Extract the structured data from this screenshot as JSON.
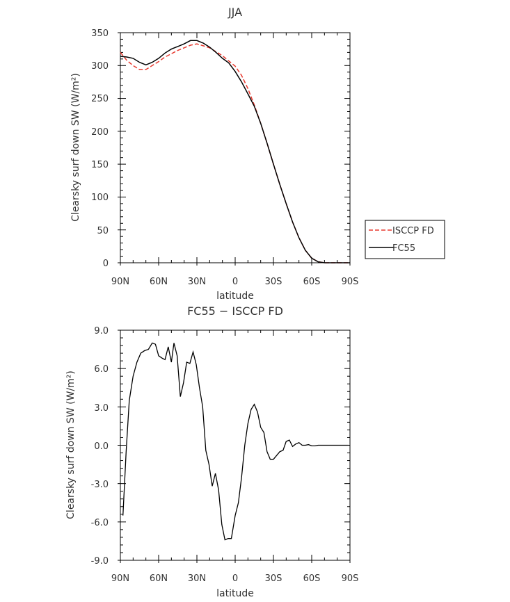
{
  "chart_data": [
    {
      "type": "line",
      "title": "JJA",
      "xlabel": "latitude",
      "ylabel": "Clearsky surf down SW (W/m²)",
      "xlim": [
        -90,
        90
      ],
      "ylim": [
        0,
        350
      ],
      "x_ticks": [
        "90N",
        "60N",
        "30N",
        "0",
        "30S",
        "60S",
        "90S"
      ],
      "y_ticks": [
        "0",
        "50",
        "100",
        "150",
        "200",
        "250",
        "300",
        "350"
      ],
      "x_note": "latitude in degrees, -90 = 90N, +90 = 90S",
      "legend": "right",
      "grid": false,
      "series": [
        {
          "name": "ISCCP FD",
          "color": "#e8392e",
          "dash": "dashed",
          "x": [
            -90,
            -85,
            -80,
            -75,
            -70,
            -65,
            -60,
            -55,
            -50,
            -45,
            -40,
            -35,
            -30,
            -25,
            -20,
            -15,
            -10,
            -5,
            0,
            5,
            10,
            15,
            20,
            25,
            30,
            35,
            40,
            45,
            50,
            55,
            60,
            65,
            70,
            75,
            80,
            85,
            90
          ],
          "values": [
            320,
            308,
            300,
            294,
            294,
            300,
            306,
            313,
            318,
            323,
            327,
            331,
            333,
            330,
            327,
            321,
            315,
            307,
            299,
            285,
            265,
            240,
            212,
            182,
            150,
            119,
            90,
            62,
            38,
            19,
            7,
            1.5,
            0,
            0,
            0,
            0,
            0
          ]
        },
        {
          "name": "FC55",
          "color": "#000000",
          "dash": "solid",
          "x": [
            -90,
            -85,
            -80,
            -75,
            -70,
            -65,
            -60,
            -55,
            -50,
            -45,
            -40,
            -35,
            -30,
            -25,
            -20,
            -15,
            -10,
            -5,
            0,
            5,
            10,
            15,
            20,
            25,
            30,
            35,
            40,
            45,
            50,
            55,
            60,
            65,
            70,
            75,
            80,
            85,
            90
          ],
          "values": [
            314,
            313,
            311,
            305,
            301,
            305,
            311,
            319,
            325,
            329,
            333,
            338,
            338,
            334,
            328,
            320,
            311,
            304,
            291,
            275,
            257,
            238,
            212,
            182,
            150,
            119,
            90,
            62,
            38,
            19,
            7,
            1.5,
            0,
            0,
            0,
            0,
            0
          ]
        }
      ]
    },
    {
      "type": "line",
      "title": "FC55 − ISCCP FD",
      "xlabel": "latitude",
      "ylabel": "Clearsky surf down SW (W/m²)",
      "xlim": [
        -90,
        90
      ],
      "ylim": [
        -9,
        9
      ],
      "x_ticks": [
        "90N",
        "60N",
        "30N",
        "0",
        "30S",
        "60S",
        "90S"
      ],
      "y_ticks": [
        "-9.0",
        "-6.0",
        "-3.0",
        "0.0",
        "3.0",
        "6.0",
        "9.0"
      ],
      "grid": false,
      "series": [
        {
          "color": "#000000",
          "dash": "solid",
          "x": [
            -88,
            -85.5,
            -83,
            -80,
            -77,
            -74,
            -71,
            -68,
            -65,
            -62.5,
            -60,
            -57,
            -55,
            -52.5,
            -50,
            -48,
            -45.5,
            -43,
            -40.5,
            -38,
            -35.5,
            -33,
            -30.5,
            -28,
            -25.5,
            -23,
            -20.5,
            -18,
            -15.5,
            -13,
            -10.5,
            -8,
            -5.5,
            -3,
            0,
            2.5,
            5,
            7.5,
            10,
            12.5,
            15,
            17.5,
            20,
            22.5,
            25,
            27.5,
            30,
            32.5,
            35,
            37.5,
            40,
            42.5,
            45,
            47.5,
            50,
            52.5,
            55,
            57.5,
            60,
            62.5,
            65,
            67.5,
            70,
            72.5,
            75,
            77.5,
            80,
            82.5,
            85,
            87.5,
            89
          ],
          "values": [
            -5.5,
            -0.5,
            3.5,
            5.4,
            6.5,
            7.2,
            7.4,
            7.5,
            8.0,
            7.9,
            7.0,
            6.8,
            6.7,
            7.7,
            6.5,
            8.0,
            7.0,
            3.8,
            4.9,
            6.5,
            6.4,
            7.3,
            6.3,
            4.5,
            3.0,
            -0.4,
            -1.5,
            -3.2,
            -2.2,
            -3.5,
            -6.2,
            -7.4,
            -7.3,
            -7.3,
            -5.5,
            -4.5,
            -2.5,
            0.0,
            1.7,
            2.8,
            3.2,
            2.6,
            1.4,
            1.0,
            -0.5,
            -1.1,
            -1.1,
            -0.8,
            -0.5,
            -0.4,
            0.3,
            0.4,
            -0.1,
            0.1,
            0.2,
            0.0,
            0.0,
            0.05,
            -0.05,
            -0.05,
            0.0,
            0.0,
            0.0,
            0.0,
            0.0,
            0.0,
            0.0,
            0.0,
            0.0,
            0.0,
            0.0
          ]
        }
      ]
    }
  ]
}
